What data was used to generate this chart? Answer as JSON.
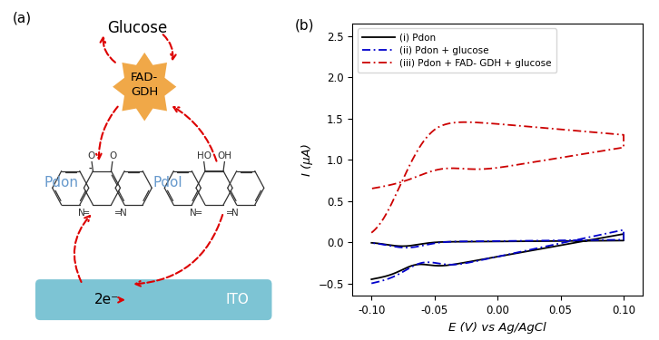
{
  "panel_b_label": "(b)",
  "panel_a_label": "(a)",
  "xlabel": "E (V) vs Ag/AgCl",
  "ylabel": "I (μA)",
  "xlim": [
    -0.115,
    0.115
  ],
  "ylim": [
    -0.65,
    2.65
  ],
  "xticks": [
    -0.1,
    -0.05,
    0.0,
    0.05,
    0.1
  ],
  "yticks": [
    -0.5,
    0.0,
    0.5,
    1.0,
    1.5,
    2.0,
    2.5
  ],
  "legend_labels": [
    "(i) Pdon",
    "(ii) Pdon + glucose",
    "(iii) Pdon + FAD- GDH + glucose"
  ],
  "colors": {
    "i": "#000000",
    "ii": "#0000cc",
    "iii": "#cc0000"
  },
  "fadgdh_color": "#f0a848",
  "ito_color": "#7dc4d4",
  "pdon_color": "#6699cc",
  "pdol_color": "#6699cc",
  "arrow_color": "#dd0000",
  "glucose_color": "#000000",
  "mol_color": "#333333"
}
